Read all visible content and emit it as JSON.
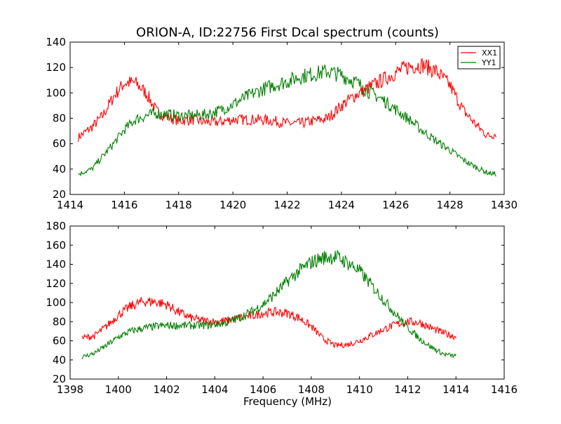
{
  "title": "ORION-A, ID:22756 First Dcal spectrum (counts)",
  "chart_data": [
    {
      "type": "line",
      "title": "ORION-A, ID:22756 First Dcal spectrum (counts)",
      "xlabel": "",
      "ylabel": "",
      "xlim": [
        1414,
        1430
      ],
      "ylim": [
        20,
        140
      ],
      "xticks": [
        1414,
        1416,
        1418,
        1420,
        1422,
        1424,
        1426,
        1428,
        1430
      ],
      "yticks": [
        20,
        40,
        60,
        80,
        100,
        120,
        140
      ],
      "grid": false,
      "legend": "top-right",
      "series": [
        {
          "name": "XX1",
          "color": "#ff0000",
          "x": [
            1414.3,
            1414.8,
            1415.2,
            1415.6,
            1416.0,
            1416.4,
            1416.8,
            1417.2,
            1417.6,
            1418.0,
            1418.5,
            1419.0,
            1419.5,
            1420.0,
            1420.5,
            1421.0,
            1421.5,
            1422.0,
            1422.5,
            1423.0,
            1423.5,
            1424.0,
            1424.5,
            1425.0,
            1425.5,
            1426.0,
            1426.5,
            1427.0,
            1427.5,
            1428.0,
            1428.5,
            1429.0,
            1429.4,
            1429.7
          ],
          "y": [
            65,
            73,
            82,
            97,
            108,
            108,
            100,
            85,
            81,
            78,
            79,
            77,
            77,
            79,
            79,
            79,
            78,
            76,
            76,
            78,
            80,
            90,
            98,
            104,
            110,
            116,
            121,
            122,
            117,
            106,
            86,
            74,
            66,
            68
          ]
        },
        {
          "name": "YY1",
          "color": "#008000",
          "x": [
            1414.3,
            1414.8,
            1415.2,
            1415.6,
            1416.0,
            1416.4,
            1416.8,
            1417.2,
            1417.6,
            1418.0,
            1418.5,
            1419.0,
            1419.5,
            1420.0,
            1420.5,
            1421.0,
            1421.5,
            1422.0,
            1422.5,
            1423.0,
            1423.5,
            1424.0,
            1424.5,
            1425.0,
            1425.5,
            1426.0,
            1426.5,
            1427.0,
            1427.5,
            1428.0,
            1428.5,
            1429.0,
            1429.4,
            1429.7
          ],
          "y": [
            36,
            40,
            50,
            60,
            71,
            79,
            82,
            84,
            83,
            82,
            82,
            83,
            86,
            91,
            97,
            102,
            106,
            109,
            113,
            115,
            117,
            114,
            109,
            101,
            95,
            87,
            79,
            70,
            62,
            55,
            47,
            41,
            37,
            36
          ]
        }
      ]
    },
    {
      "type": "line",
      "title": "",
      "xlabel": "Frequency (MHz)",
      "ylabel": "",
      "xlim": [
        1398,
        1416
      ],
      "ylim": [
        20,
        180
      ],
      "xticks": [
        1398,
        1400,
        1402,
        1404,
        1406,
        1408,
        1410,
        1412,
        1414,
        1416
      ],
      "yticks": [
        20,
        40,
        60,
        80,
        100,
        120,
        140,
        160,
        180
      ],
      "grid": false,
      "legend": "none",
      "series": [
        {
          "name": "",
          "color": "#ff0000",
          "x": [
            1398.5,
            1399.0,
            1399.5,
            1400.0,
            1400.5,
            1401.0,
            1401.5,
            1402.0,
            1402.5,
            1403.0,
            1403.5,
            1404.0,
            1404.5,
            1405.0,
            1405.5,
            1406.0,
            1406.5,
            1407.0,
            1407.5,
            1408.0,
            1408.5,
            1409.0,
            1409.5,
            1410.0,
            1410.5,
            1411.0,
            1411.5,
            1412.0,
            1412.5,
            1413.0,
            1413.5,
            1414.0
          ],
          "y": [
            63,
            65,
            75,
            87,
            96,
            101,
            101,
            98,
            90,
            84,
            81,
            80,
            81,
            84,
            86,
            89,
            90,
            89,
            84,
            75,
            62,
            55,
            56,
            60,
            66,
            72,
            77,
            80,
            79,
            73,
            68,
            64
          ]
        },
        {
          "name": "",
          "color": "#008000",
          "x": [
            1398.5,
            1399.0,
            1399.5,
            1400.0,
            1400.5,
            1401.0,
            1401.5,
            1402.0,
            1402.5,
            1403.0,
            1403.5,
            1404.0,
            1404.5,
            1405.0,
            1405.5,
            1406.0,
            1406.5,
            1407.0,
            1407.5,
            1408.0,
            1408.5,
            1409.0,
            1409.5,
            1410.0,
            1410.5,
            1411.0,
            1411.5,
            1412.0,
            1412.5,
            1413.0,
            1413.5,
            1414.0
          ],
          "y": [
            43,
            47,
            55,
            64,
            70,
            73,
            75,
            76,
            76,
            76,
            76,
            77,
            79,
            84,
            90,
            98,
            109,
            122,
            133,
            142,
            147,
            148,
            142,
            133,
            118,
            103,
            88,
            74,
            62,
            53,
            46,
            44
          ]
        }
      ]
    }
  ]
}
